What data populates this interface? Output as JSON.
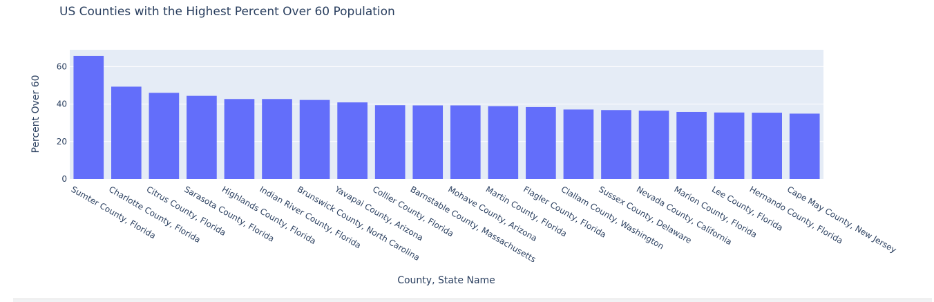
{
  "chart_data": {
    "type": "bar",
    "title": "US Counties with the Highest Percent Over 60 Population",
    "xlabel": "County, State Name",
    "ylabel": "Percent Over 60",
    "ylim": [
      0,
      69
    ],
    "yticks": [
      "0",
      "20",
      "40",
      "60"
    ],
    "grid": true,
    "legend": "none",
    "categories": [
      "Sumter County, Florida",
      "Charlotte County, Florida",
      "Citrus County, Florida",
      "Sarasota County, Florida",
      "Highlands County, Florida",
      "Indian River County, Florida",
      "Brunswick County, North Carolina",
      "Yavapai County, Arizona",
      "Collier County, Florida",
      "Barnstable County, Massachusetts",
      "Mohave County, Arizona",
      "Martin County, Florida",
      "Flagler County, Florida",
      "Clallam County, Washington",
      "Sussex County, Delaware",
      "Nevada County, California",
      "Marion County, Florida",
      "Lee County, Florida",
      "Hernando County, Florida",
      "Cape May County, New Jersey"
    ],
    "values": [
      65.7,
      49.3,
      46.0,
      44.4,
      42.7,
      42.7,
      42.2,
      40.9,
      39.4,
      39.3,
      39.3,
      38.9,
      38.4,
      37.1,
      36.8,
      36.5,
      35.8,
      35.5,
      35.4,
      34.9
    ]
  },
  "colors": {
    "bar": "#636efa",
    "plot_background": "#e5ecf6",
    "grid": "#ffffff",
    "text": "#2a3f5f"
  }
}
